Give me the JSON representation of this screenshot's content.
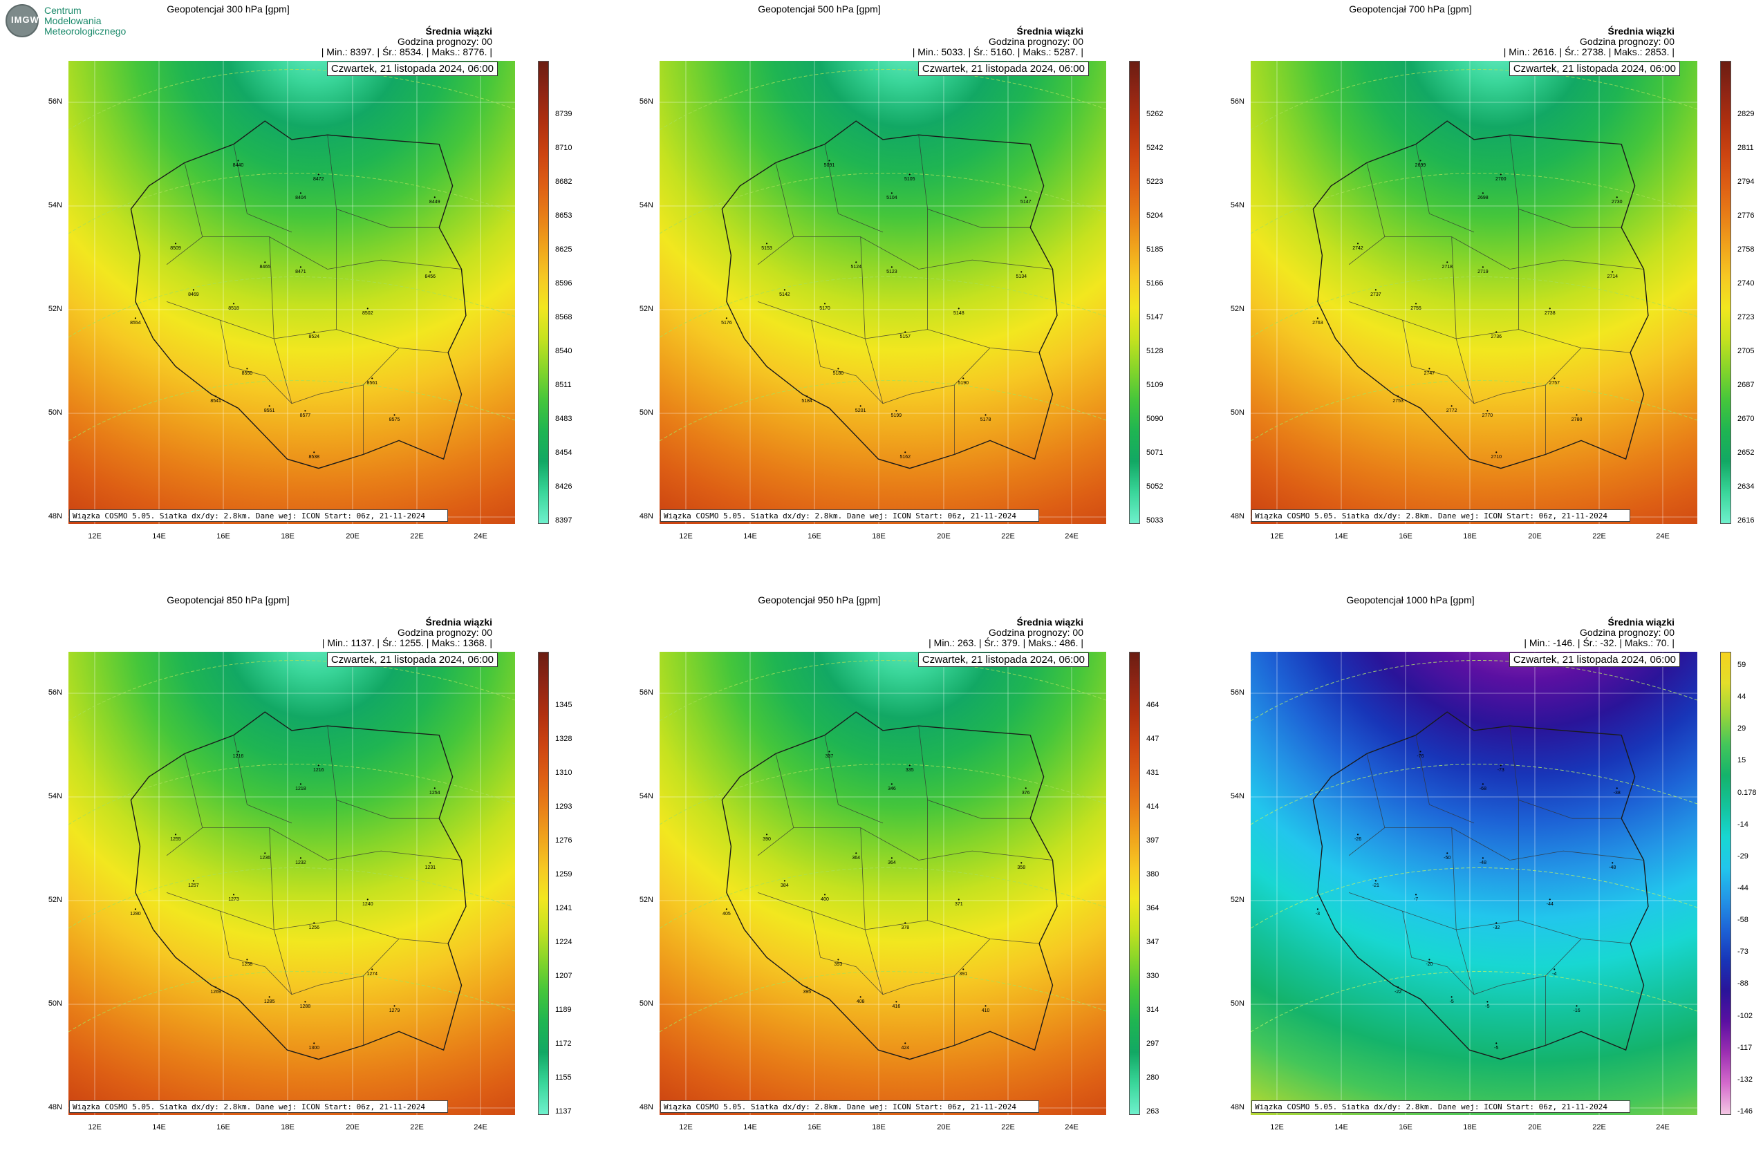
{
  "logo": {
    "badge_text": "IMGW",
    "line1": "Centrum",
    "line2": "Modelowania",
    "line3": "Meteorologicznego"
  },
  "common": {
    "member_label": "Średnia wiązki",
    "forecast_hour": "Godzina prognozy: 00",
    "date": "Czwartek, 21 listopada 2024, 06:00",
    "footer": "Wiązka COSMO 5.05. Siatka dx/dy: 2.8km. Dane wej: ICON Start: 06z, 21-11-2024",
    "lat_labels": [
      "56N",
      "54N",
      "52N",
      "50N",
      "48N"
    ],
    "lon_labels": [
      "12E",
      "14E",
      "16E",
      "18E",
      "20E",
      "22E",
      "24E"
    ]
  },
  "panels": [
    {
      "title": "Geopotencjał 300 hPa [gpm]",
      "stats": "| Min.:   8397. | Śr.:   8534. | Maks.:   8776. |",
      "ticks": [
        "8739",
        "8710",
        "8682",
        "8653",
        "8625",
        "8596",
        "8568",
        "8540",
        "8511",
        "8483",
        "8454",
        "8426",
        "8397"
      ],
      "palette": "warm",
      "cities": [
        "8440",
        "8404",
        "8472",
        "8449",
        "8509",
        "8465",
        "8471",
        "8456",
        "8469",
        "8518",
        "8502",
        "8524",
        "8554",
        "8550",
        "8541",
        "8561",
        "8551",
        "8577",
        "8575",
        "8538"
      ]
    },
    {
      "title": "Geopotencjał 500 hPa [gpm]",
      "stats": "| Min.:   5033. | Śr.:   5160. | Maks.:   5287. |",
      "ticks": [
        "5262",
        "5242",
        "5223",
        "5204",
        "5185",
        "5166",
        "5147",
        "5128",
        "5109",
        "5090",
        "5071",
        "5052",
        "5033"
      ],
      "palette": "warm",
      "cities": [
        "5091",
        "5104",
        "5105",
        "5147",
        "5153",
        "5124",
        "5123",
        "5134",
        "5142",
        "5170",
        "5148",
        "5157",
        "5176",
        "5180",
        "5184",
        "5190",
        "5201",
        "5199",
        "5178",
        "5162"
      ]
    },
    {
      "title": "Geopotencjał 700 hPa [gpm]",
      "stats": "| Min.:   2616. | Śr.:   2738. | Maks.:   2853. |",
      "ticks": [
        "2829",
        "2811",
        "2794",
        "2776",
        "2758",
        "2740",
        "2723",
        "2705",
        "2687",
        "2670",
        "2652",
        "2634",
        "2616"
      ],
      "palette": "warm",
      "cities": [
        "2699",
        "2698",
        "2700",
        "2730",
        "2742",
        "2718",
        "2719",
        "2714",
        "2737",
        "2755",
        "2738",
        "2736",
        "2763",
        "2747",
        "2753",
        "2757",
        "2772",
        "2770",
        "2780",
        "2710"
      ]
    },
    {
      "title": "Geopotencjał 850 hPa [gpm]",
      "stats": "| Min.:   1137. | Śr.:   1255. | Maks.:   1368. |",
      "ticks": [
        "1345",
        "1328",
        "1310",
        "1293",
        "1276",
        "1259",
        "1241",
        "1224",
        "1207",
        "1189",
        "1172",
        "1155",
        "1137"
      ],
      "palette": "warm",
      "cities": [
        "1216",
        "1218",
        "1216",
        "1254",
        "1255",
        "1236",
        "1232",
        "1231",
        "1257",
        "1273",
        "1240",
        "1256",
        "1280",
        "1258",
        "1269",
        "1274",
        "1285",
        "1288",
        "1279",
        "1300"
      ]
    },
    {
      "title": "Geopotencjał 950 hPa [gpm]",
      "stats": "| Min.:   263. | Śr.:   379. | Maks.:   486. |",
      "ticks": [
        "464",
        "447",
        "431",
        "414",
        "397",
        "380",
        "364",
        "347",
        "330",
        "314",
        "297",
        "280",
        "263"
      ],
      "palette": "warm",
      "cities": [
        "337",
        "346",
        "335",
        "376",
        "390",
        "364",
        "364",
        "358",
        "384",
        "400",
        "371",
        "378",
        "405",
        "393",
        "395",
        "391",
        "408",
        "416",
        "410",
        "424"
      ]
    },
    {
      "title": "Geopotencjał 1000 hPa [gpm]",
      "stats": "| Min.:   -146. | Śr.:   -32. | Maks.:   70. |",
      "ticks": [
        "59",
        "44",
        "29",
        "15",
        "0.178",
        "-14",
        "-29",
        "-44",
        "-58",
        "-73",
        "-88",
        "-102",
        "-117",
        "-132",
        "-146"
      ],
      "palette": "cool",
      "cities": [
        "-76",
        "-68",
        "-73",
        "-38",
        "-26",
        "-50",
        "-48",
        "-48",
        "-21",
        "-7",
        "-44",
        "-32",
        "-3",
        "-20",
        "-22",
        "-4",
        "-5",
        "-5",
        "-16",
        "-5"
      ]
    }
  ]
}
